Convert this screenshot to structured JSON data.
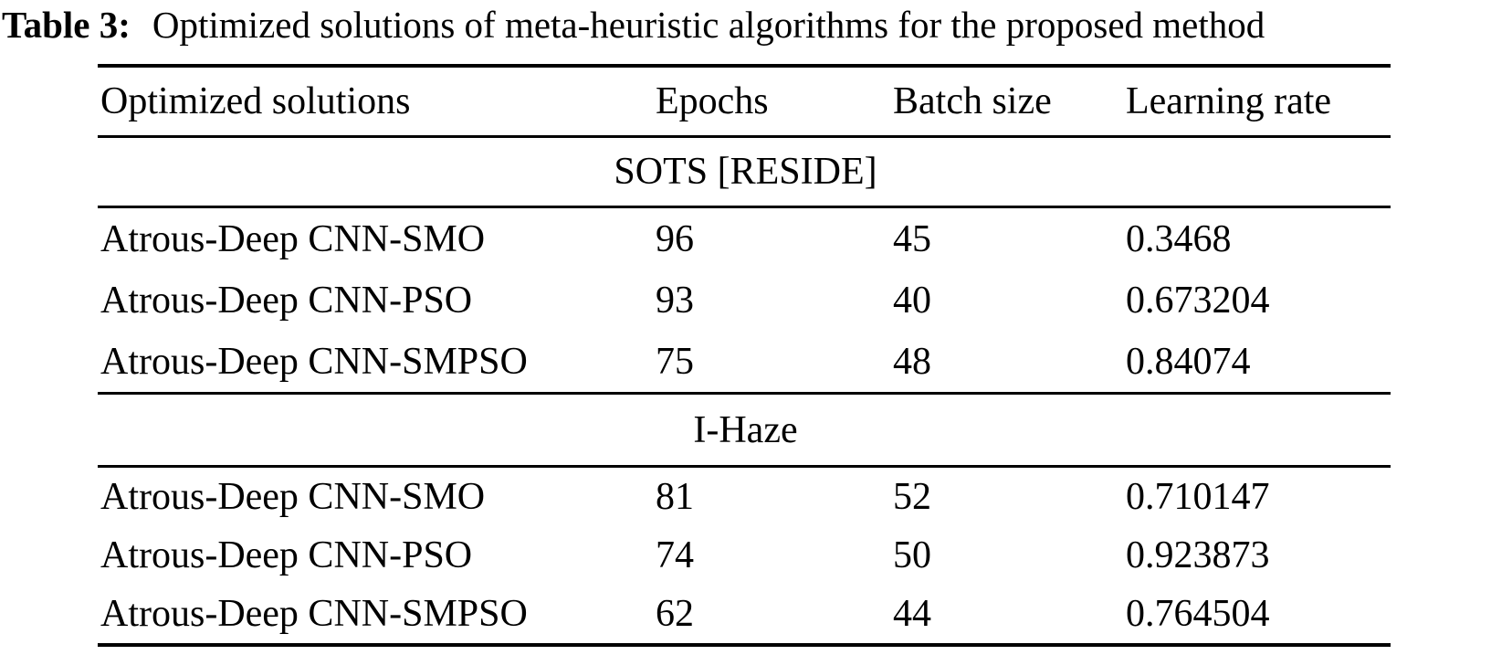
{
  "caption": {
    "label": "Table 3:",
    "text": "Optimized solutions of meta-heuristic algorithms for the proposed method"
  },
  "table": {
    "columns": {
      "solution": "Optimized solutions",
      "epochs": "Epochs",
      "batch_size": "Batch size",
      "learning_rate": "Learning rate"
    },
    "sections": [
      {
        "name": "SOTS [RESIDE]",
        "rows": [
          {
            "solution": "Atrous-Deep CNN-SMO",
            "epochs": "96",
            "batch_size": "45",
            "learning_rate": "0.3468"
          },
          {
            "solution": "Atrous-Deep CNN-PSO",
            "epochs": "93",
            "batch_size": "40",
            "learning_rate": "0.673204"
          },
          {
            "solution": "Atrous-Deep CNN-SMPSO",
            "epochs": "75",
            "batch_size": "48",
            "learning_rate": "0.84074"
          }
        ]
      },
      {
        "name": "I-Haze",
        "rows": [
          {
            "solution": "Atrous-Deep CNN-SMO",
            "epochs": "81",
            "batch_size": "52",
            "learning_rate": "0.710147"
          },
          {
            "solution": "Atrous-Deep CNN-PSO",
            "epochs": "74",
            "batch_size": "50",
            "learning_rate": "0.923873"
          },
          {
            "solution": "Atrous-Deep CNN-SMPSO",
            "epochs": "62",
            "batch_size": "44",
            "learning_rate": "0.764504"
          }
        ]
      }
    ]
  },
  "colors": {
    "text": "#000000",
    "background": "#ffffff",
    "rule": "#000000"
  }
}
